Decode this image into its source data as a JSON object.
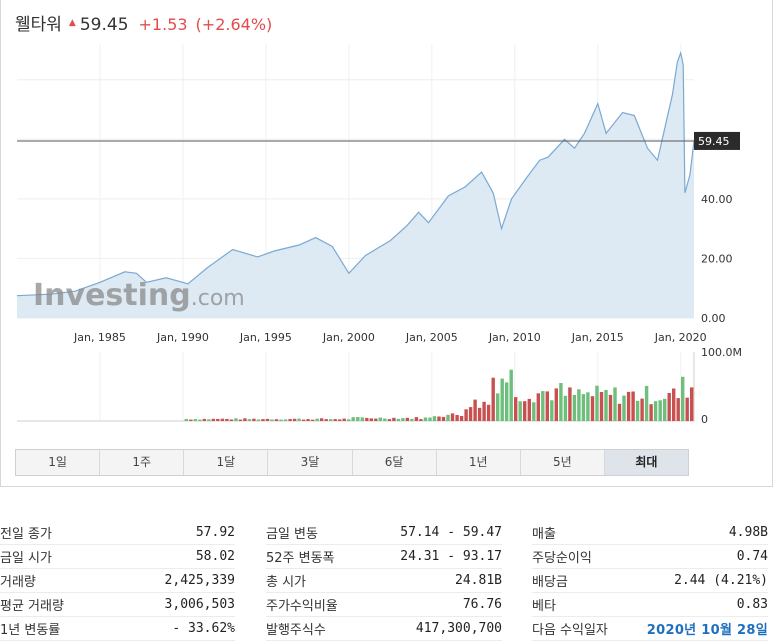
{
  "header": {
    "name": "웰타워",
    "price": "59.45",
    "change": "+1.53",
    "change_pct": "(+2.64%)",
    "trend_icon": "up-triangle-icon",
    "up_color": "#e24c4c"
  },
  "watermark": {
    "brand": "Investing",
    "suffix": ".com"
  },
  "chart_data": {
    "type": "area",
    "current_price_label": "59.45",
    "current_price": 59.45,
    "y_ticks": [
      "0.00",
      "20.00",
      "40.00"
    ],
    "x_ticks": [
      "Jan, 1985",
      "Jan, 1990",
      "Jan, 1995",
      "Jan, 2000",
      "Jan, 2005",
      "Jan, 2010",
      "Jan, 2015",
      "Jan, 2020"
    ],
    "xlim": [
      1980.0,
      2020.8
    ],
    "ylim": [
      0,
      92
    ],
    "price_series": [
      [
        1980.0,
        7.5
      ],
      [
        1982.0,
        8.0
      ],
      [
        1983.5,
        9.0
      ],
      [
        1985.0,
        12.0
      ],
      [
        1986.5,
        15.5
      ],
      [
        1987.2,
        15.0
      ],
      [
        1987.8,
        12.0
      ],
      [
        1989.0,
        13.5
      ],
      [
        1990.3,
        11.5
      ],
      [
        1991.5,
        17.0
      ],
      [
        1993.0,
        23.0
      ],
      [
        1994.5,
        20.5
      ],
      [
        1995.5,
        22.5
      ],
      [
        1997.0,
        24.5
      ],
      [
        1998.0,
        27.0
      ],
      [
        1999.0,
        24.0
      ],
      [
        2000.0,
        15.0
      ],
      [
        2001.0,
        21.0
      ],
      [
        2002.5,
        26.0
      ],
      [
        2003.5,
        31.0
      ],
      [
        2004.2,
        35.5
      ],
      [
        2004.8,
        32.0
      ],
      [
        2006.0,
        41.0
      ],
      [
        2007.0,
        44.0
      ],
      [
        2008.0,
        49.0
      ],
      [
        2008.7,
        42.0
      ],
      [
        2009.2,
        30.0
      ],
      [
        2009.8,
        40.0
      ],
      [
        2010.7,
        47.0
      ],
      [
        2011.5,
        53.0
      ],
      [
        2012.0,
        54.0
      ],
      [
        2013.0,
        60.0
      ],
      [
        2013.6,
        57.0
      ],
      [
        2014.2,
        62.0
      ],
      [
        2015.0,
        72.0
      ],
      [
        2015.5,
        62.0
      ],
      [
        2016.5,
        69.0
      ],
      [
        2017.2,
        68.0
      ],
      [
        2018.0,
        57.0
      ],
      [
        2018.6,
        53.0
      ],
      [
        2019.5,
        75.0
      ],
      [
        2019.8,
        86.0
      ],
      [
        2020.0,
        89.0
      ],
      [
        2020.15,
        85.0
      ],
      [
        2020.25,
        42.0
      ],
      [
        2020.55,
        48.0
      ],
      [
        2020.8,
        59.45
      ]
    ],
    "volume_label": "100.0M",
    "volume_zero_label": "0",
    "volume_max": 100,
    "up_bar_color": "#6dbf7b",
    "down_bar_color": "#c95050"
  },
  "periods": [
    {
      "label": "1일"
    },
    {
      "label": "1주"
    },
    {
      "label": "1달"
    },
    {
      "label": "3달"
    },
    {
      "label": "6달"
    },
    {
      "label": "1년"
    },
    {
      "label": "5년"
    },
    {
      "label": "최대"
    }
  ],
  "stats": {
    "col1": [
      {
        "label": "전일 종가",
        "value": "57.92"
      },
      {
        "label": "금일 시가",
        "value": "58.02"
      },
      {
        "label": "거래량",
        "value": "2,425,339"
      },
      {
        "label": "평균 거래량",
        "value": "3,006,503"
      },
      {
        "label": "1년 변동률",
        "value": "- 33.62%"
      }
    ],
    "col2": [
      {
        "label": "금일 변동",
        "value": "57.14 - 59.47"
      },
      {
        "label": "52주 변동폭",
        "value": "24.31 - 93.17"
      },
      {
        "label": "총 시가",
        "value": "24.81B"
      },
      {
        "label": "주가수익비율",
        "value": "76.76"
      },
      {
        "label": "발행주식수",
        "value": "417,300,700"
      }
    ],
    "col3": [
      {
        "label": "매출",
        "value": "4.98B"
      },
      {
        "label": "주당순이익",
        "value": "0.74"
      },
      {
        "label": "배당금",
        "value": "2.44 (4.21%)"
      },
      {
        "label": "베타",
        "value": "0.83"
      },
      {
        "label": "다음 수익일자",
        "value": "2020년 10월 28일"
      }
    ]
  }
}
